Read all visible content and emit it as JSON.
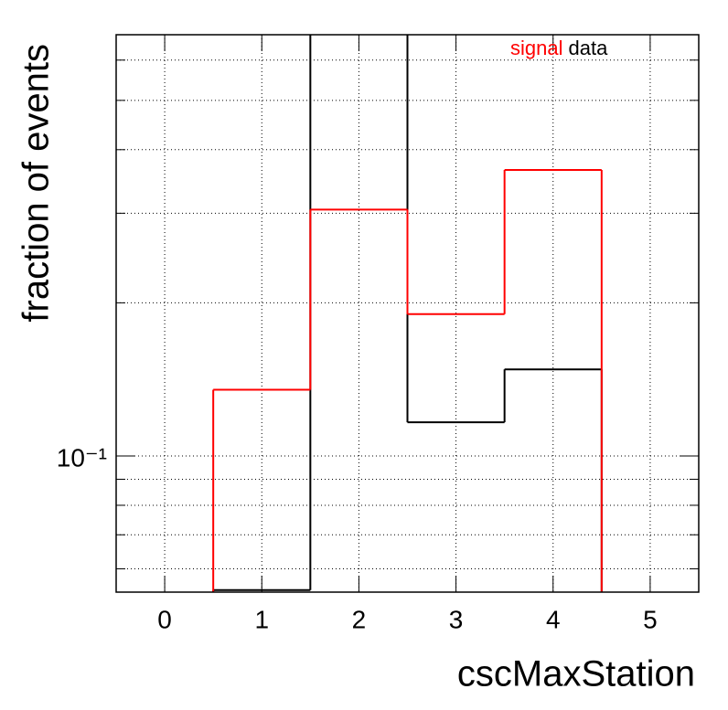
{
  "chart_data": {
    "type": "histogram",
    "x_label": "cscMaxStation",
    "y_label": "fraction of events",
    "bins": [
      -0.5,
      0.5,
      1.5,
      2.5,
      3.5,
      4.5,
      5.5
    ],
    "series": [
      {
        "name": "signal",
        "color": "#ff0000",
        "values": [
          0,
          0.135,
          0.305,
          0.19,
          0.365,
          0
        ]
      },
      {
        "name": "data",
        "color": "#000000",
        "values": [
          0,
          0.0545,
          0.68,
          0.1165,
          0.148,
          0
        ]
      }
    ],
    "xlim": [
      -0.5,
      5.5
    ],
    "xticks": [
      0,
      1,
      2,
      3,
      4,
      5
    ],
    "ylim": [
      0.054,
      0.673
    ],
    "yticks": [
      {
        "value": 0.1,
        "label": "10⁻¹"
      }
    ],
    "yminorticks": [
      0.06,
      0.07,
      0.08,
      0.09,
      0.2,
      0.3,
      0.4,
      0.5,
      0.6
    ],
    "ylog": true,
    "grid": true,
    "legend": "top-right"
  }
}
